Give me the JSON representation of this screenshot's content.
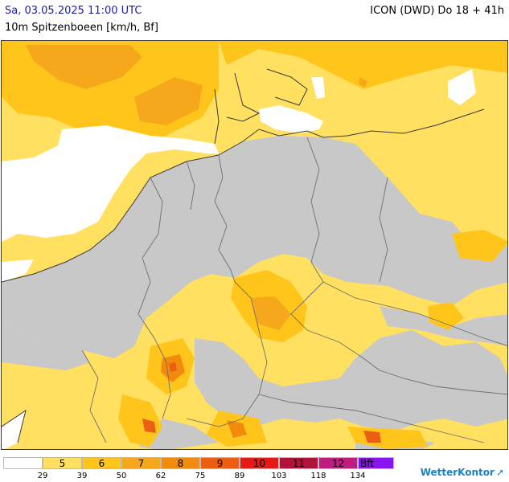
{
  "header": {
    "datetime": "Sa, 03.05.2025 11:00 UTC",
    "model": "ICON (DWD) Do 18 + 41h",
    "parameter": "10m Spitzenboeen [km/h, Bf]"
  },
  "legend": {
    "classes": [
      {
        "label": "",
        "color": "#ffffff"
      },
      {
        "label": "5",
        "color": "#ffe060"
      },
      {
        "label": "6",
        "color": "#ffc51a"
      },
      {
        "label": "7",
        "color": "#f6a81c"
      },
      {
        "label": "8",
        "color": "#f28a0e"
      },
      {
        "label": "9",
        "color": "#ec5e12"
      },
      {
        "label": "10",
        "color": "#e51a16"
      },
      {
        "label": "11",
        "color": "#b0123a"
      },
      {
        "label": "12",
        "color": "#c01c80"
      },
      {
        "label": "Bft",
        "color": "#8a14f0"
      }
    ],
    "ticks": [
      "29",
      "39",
      "50",
      "62",
      "75",
      "89",
      "103",
      "118",
      "134"
    ]
  },
  "logo": {
    "text": "WetterKontor"
  },
  "colors": {
    "land_no_gusts": "#c8c8c8",
    "sea_calm": "#ffffff",
    "border": "#6e6e6e",
    "coast": "#3a3a3a"
  }
}
